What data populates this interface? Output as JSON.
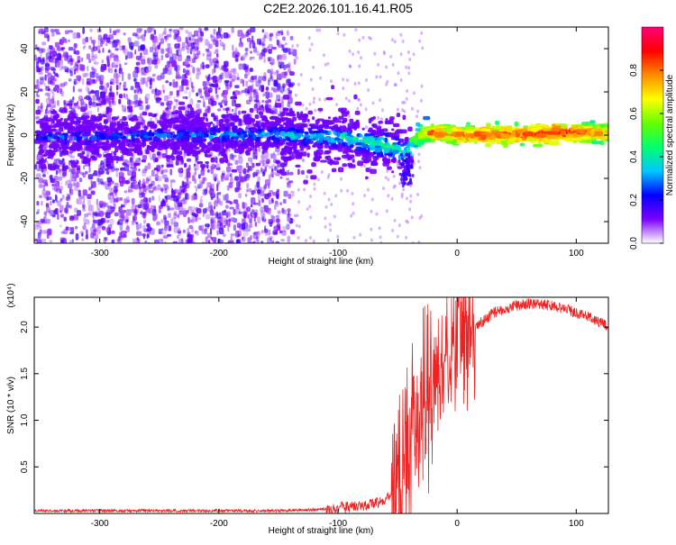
{
  "title": "C2E2.2026.101.16.41.R05",
  "chart_data": [
    {
      "type": "heatmap",
      "title": "C2E2.2026.101.16.41.R05",
      "xlabel": "Height of straight line (km)",
      "ylabel": "Frequency (Hz)",
      "xlim": [
        -355,
        127
      ],
      "ylim": [
        -50,
        50
      ],
      "x_ticks": [
        "-300",
        "-200",
        "-100",
        "0",
        "100"
      ],
      "x_tick_values": [
        -300,
        -200,
        -100,
        0,
        100
      ],
      "y_ticks": [
        "-40",
        "-20",
        "0",
        "20",
        "40"
      ],
      "y_tick_values": [
        -40,
        -20,
        0,
        20,
        40
      ],
      "colorbar": {
        "label": "Normalized spectral amplitude",
        "range": [
          0,
          1
        ],
        "ticks": [
          "0.0",
          "0.2",
          "0.4",
          "0.6",
          "0.8"
        ],
        "tick_values": [
          0.0,
          0.2,
          0.4,
          0.6,
          0.8
        ],
        "colormap": [
          "#ffffff",
          "#7b00ff",
          "#0000ff",
          "#00c8ff",
          "#00ff6e",
          "#64ff00",
          "#ffff00",
          "#ff8c00",
          "#ff0000",
          "#ff0078"
        ]
      },
      "ridge": {
        "x": [
          -355,
          -300,
          -250,
          -200,
          -150,
          -100,
          -80,
          -60,
          -50,
          -45,
          -40,
          -30,
          -20,
          -10,
          0,
          20,
          50,
          80,
          100,
          127
        ],
        "frequency": [
          0,
          0,
          1,
          1,
          1,
          0,
          -2,
          -4,
          -6,
          -8,
          -2,
          2,
          2,
          1,
          1,
          1,
          1,
          2,
          2,
          2
        ],
        "amplitude": [
          0.25,
          0.25,
          0.27,
          0.3,
          0.33,
          0.4,
          0.42,
          0.45,
          0.45,
          0.4,
          0.5,
          0.7,
          0.85,
          0.75,
          0.8,
          0.85,
          0.8,
          0.9,
          0.8,
          0.75
        ]
      }
    },
    {
      "type": "line",
      "xlabel": "Height of straight line (km)",
      "ylabel": "SNR (10 * v/v)",
      "y_multiplier": "(x10⁴)",
      "xlim": [
        -355,
        127
      ],
      "ylim": [
        0,
        2.32
      ],
      "x_ticks": [
        "-300",
        "-200",
        "-100",
        "0",
        "100"
      ],
      "x_tick_values": [
        -300,
        -200,
        -100,
        0,
        100
      ],
      "y_ticks": [
        "0.5",
        "1.0",
        "1.5",
        "2.0"
      ],
      "y_tick_values": [
        0.5,
        1.0,
        1.5,
        2.0
      ],
      "series": [
        {
          "color": "#ee2222",
          "x": [
            -355,
            -300,
            -250,
            -200,
            -150,
            -120,
            -100,
            -80,
            -65,
            -55,
            -50,
            -45,
            -42,
            -40,
            -38,
            -35,
            -32,
            -30,
            -27,
            -25,
            -22,
            -20,
            -15,
            -10,
            -5,
            0,
            5,
            10,
            20,
            30,
            40,
            50,
            60,
            70,
            80,
            90,
            100,
            110,
            120,
            127
          ],
          "y": [
            0.03,
            0.03,
            0.03,
            0.03,
            0.03,
            0.04,
            0.06,
            0.08,
            0.12,
            0.2,
            0.3,
            0.45,
            0.6,
            0.75,
            0.9,
            1.0,
            1.1,
            1.15,
            1.2,
            1.25,
            1.3,
            1.4,
            1.5,
            1.6,
            1.7,
            1.8,
            1.85,
            1.95,
            2.05,
            2.15,
            2.2,
            2.23,
            2.25,
            2.25,
            2.23,
            2.2,
            2.15,
            2.12,
            2.05,
            2.0
          ]
        }
      ]
    }
  ]
}
